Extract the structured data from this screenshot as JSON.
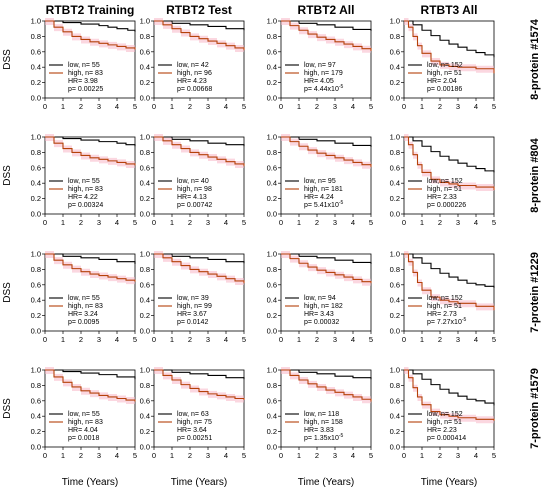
{
  "colors": {
    "low": "#000000",
    "high": "#b5410a",
    "ci": "#f7b7c7",
    "axis": "#000000"
  },
  "figure": {
    "column_titles": [
      "RTBT2 Training",
      "RTBT2 Test",
      "RTBT2 All",
      "RTBT3 All"
    ],
    "row_labels": [
      "8-protein #1574",
      "8-protein #804",
      "7-protein #1229",
      "7-protein #1579"
    ],
    "y_axis_title": "DSS",
    "x_axis_title": "Time (Years)",
    "x_ticks": [
      "0",
      "1",
      "2",
      "3",
      "4",
      "5"
    ],
    "y_ticks": [
      "0.0",
      "0.2",
      "0.4",
      "0.6",
      "0.8",
      "1.0"
    ],
    "legend_labels": {
      "low": "low",
      "high": "high",
      "hr": "HR=",
      "p": "p="
    }
  },
  "chart_data": [
    {
      "type": "line",
      "row": 0,
      "col": 0,
      "ylim": [
        0,
        1
      ],
      "xlim": [
        0,
        5
      ],
      "n_low": "55",
      "n_high": "83",
      "hr": "3.98",
      "p_mant": "0.00225",
      "p_exp": "",
      "series": [
        {
          "name": "low",
          "x": [
            0,
            1,
            2,
            3,
            3.5,
            4,
            4.6,
            5
          ],
          "y": [
            1.0,
            0.98,
            0.96,
            0.94,
            0.92,
            0.9,
            0.88,
            0.86
          ]
        },
        {
          "name": "high",
          "x": [
            0,
            0.5,
            1,
            1.5,
            2,
            2.5,
            3,
            3.5,
            4,
            4.5,
            5
          ],
          "y": [
            1.0,
            0.92,
            0.86,
            0.8,
            0.76,
            0.73,
            0.71,
            0.69,
            0.67,
            0.65,
            0.63
          ]
        }
      ]
    },
    {
      "type": "line",
      "row": 0,
      "col": 1,
      "ylim": [
        0,
        1
      ],
      "xlim": [
        0,
        5
      ],
      "n_low": "42",
      "n_high": "96",
      "hr": "4.23",
      "p_mant": "0.00668",
      "p_exp": "",
      "series": [
        {
          "name": "low",
          "x": [
            0,
            1,
            2,
            3,
            4,
            5
          ],
          "y": [
            1.0,
            0.97,
            0.95,
            0.93,
            0.9,
            0.88
          ]
        },
        {
          "name": "high",
          "x": [
            0,
            0.5,
            1,
            1.5,
            2,
            2.5,
            3,
            3.5,
            4,
            4.5,
            5
          ],
          "y": [
            1.0,
            0.95,
            0.9,
            0.85,
            0.8,
            0.77,
            0.74,
            0.71,
            0.68,
            0.65,
            0.62
          ]
        }
      ]
    },
    {
      "type": "line",
      "row": 0,
      "col": 2,
      "ylim": [
        0,
        1
      ],
      "xlim": [
        0,
        5
      ],
      "n_low": "97",
      "n_high": "179",
      "hr": "4.05",
      "p_mant": "4.44x10",
      "p_exp": "-5",
      "series": [
        {
          "name": "low",
          "x": [
            0,
            1,
            2,
            3,
            4,
            5
          ],
          "y": [
            1.0,
            0.97,
            0.95,
            0.92,
            0.89,
            0.87
          ]
        },
        {
          "name": "high",
          "x": [
            0,
            0.5,
            1,
            1.5,
            2,
            2.5,
            3,
            3.5,
            4,
            4.5,
            5
          ],
          "y": [
            1.0,
            0.94,
            0.88,
            0.83,
            0.79,
            0.76,
            0.73,
            0.7,
            0.67,
            0.64,
            0.61
          ]
        }
      ]
    },
    {
      "type": "line",
      "row": 0,
      "col": 3,
      "ylim": [
        0,
        1
      ],
      "xlim": [
        0,
        5
      ],
      "n_low": "152",
      "n_high": "51",
      "hr": "2.04",
      "p_mant": "0.00186",
      "p_exp": "",
      "series": [
        {
          "name": "low",
          "x": [
            0,
            0.5,
            1,
            1.5,
            2,
            2.5,
            3,
            3.5,
            4,
            4.5,
            5
          ],
          "y": [
            1.0,
            0.95,
            0.88,
            0.81,
            0.75,
            0.7,
            0.66,
            0.62,
            0.59,
            0.56,
            0.53
          ]
        },
        {
          "name": "high",
          "x": [
            0,
            0.25,
            0.5,
            0.75,
            1,
            1.5,
            2,
            2.5,
            3,
            4,
            5
          ],
          "y": [
            1.0,
            0.92,
            0.8,
            0.68,
            0.58,
            0.48,
            0.43,
            0.41,
            0.4,
            0.38,
            0.32
          ]
        }
      ]
    },
    {
      "type": "line",
      "row": 1,
      "col": 0,
      "ylim": [
        0,
        1
      ],
      "xlim": [
        0,
        5
      ],
      "n_low": "55",
      "n_high": "83",
      "hr": "4.22",
      "p_mant": "0.00324",
      "p_exp": "",
      "series": [
        {
          "name": "low",
          "x": [
            0,
            1,
            2,
            3,
            4,
            4.5,
            5
          ],
          "y": [
            1.0,
            0.98,
            0.96,
            0.94,
            0.92,
            0.9,
            0.88
          ]
        },
        {
          "name": "high",
          "x": [
            0,
            0.5,
            1,
            1.5,
            2,
            2.5,
            3,
            3.5,
            4,
            4.5,
            5
          ],
          "y": [
            1.0,
            0.92,
            0.85,
            0.8,
            0.76,
            0.73,
            0.71,
            0.69,
            0.67,
            0.65,
            0.63
          ]
        }
      ]
    },
    {
      "type": "line",
      "row": 1,
      "col": 1,
      "ylim": [
        0,
        1
      ],
      "xlim": [
        0,
        5
      ],
      "n_low": "40",
      "n_high": "98",
      "hr": "4.13",
      "p_mant": "0.00742",
      "p_exp": "",
      "series": [
        {
          "name": "low",
          "x": [
            0,
            1,
            2,
            3,
            4,
            5
          ],
          "y": [
            1.0,
            0.97,
            0.95,
            0.92,
            0.9,
            0.88
          ]
        },
        {
          "name": "high",
          "x": [
            0,
            0.5,
            1,
            1.5,
            2,
            2.5,
            3,
            3.5,
            4,
            4.5,
            5
          ],
          "y": [
            1.0,
            0.95,
            0.9,
            0.85,
            0.8,
            0.77,
            0.74,
            0.71,
            0.68,
            0.65,
            0.62
          ]
        }
      ]
    },
    {
      "type": "line",
      "row": 1,
      "col": 2,
      "ylim": [
        0,
        1
      ],
      "xlim": [
        0,
        5
      ],
      "n_low": "95",
      "n_high": "181",
      "hr": "4.24",
      "p_mant": "5.41x10",
      "p_exp": "-5",
      "series": [
        {
          "name": "low",
          "x": [
            0,
            1,
            2,
            3,
            4,
            5
          ],
          "y": [
            1.0,
            0.97,
            0.95,
            0.92,
            0.89,
            0.87
          ]
        },
        {
          "name": "high",
          "x": [
            0,
            0.5,
            1,
            1.5,
            2,
            2.5,
            3,
            3.5,
            4,
            4.5,
            5
          ],
          "y": [
            1.0,
            0.94,
            0.88,
            0.83,
            0.79,
            0.76,
            0.73,
            0.7,
            0.67,
            0.64,
            0.61
          ]
        }
      ]
    },
    {
      "type": "line",
      "row": 1,
      "col": 3,
      "ylim": [
        0,
        1
      ],
      "xlim": [
        0,
        5
      ],
      "n_low": "152",
      "n_high": "51",
      "hr": "2.33",
      "p_mant": "0.000226",
      "p_exp": "",
      "series": [
        {
          "name": "low",
          "x": [
            0,
            0.5,
            1,
            1.5,
            2,
            2.5,
            3,
            3.5,
            4,
            4.5,
            5
          ],
          "y": [
            1.0,
            0.95,
            0.88,
            0.81,
            0.75,
            0.7,
            0.66,
            0.62,
            0.59,
            0.56,
            0.54
          ]
        },
        {
          "name": "high",
          "x": [
            0,
            0.25,
            0.5,
            0.75,
            1,
            1.5,
            2,
            2.5,
            3,
            4,
            5
          ],
          "y": [
            1.0,
            0.9,
            0.77,
            0.64,
            0.54,
            0.45,
            0.41,
            0.39,
            0.37,
            0.35,
            0.31
          ]
        }
      ]
    },
    {
      "type": "line",
      "row": 2,
      "col": 0,
      "ylim": [
        0,
        1
      ],
      "xlim": [
        0,
        5
      ],
      "n_low": "55",
      "n_high": "83",
      "hr": "3.24",
      "p_mant": "0.0095",
      "p_exp": "",
      "series": [
        {
          "name": "low",
          "x": [
            0,
            1,
            2,
            3,
            4,
            5
          ],
          "y": [
            1.0,
            0.97,
            0.95,
            0.93,
            0.9,
            0.87
          ]
        },
        {
          "name": "high",
          "x": [
            0,
            0.5,
            1,
            1.5,
            2,
            2.5,
            3,
            3.5,
            4,
            4.5,
            5
          ],
          "y": [
            1.0,
            0.92,
            0.86,
            0.81,
            0.77,
            0.74,
            0.72,
            0.7,
            0.68,
            0.66,
            0.64
          ]
        }
      ]
    },
    {
      "type": "line",
      "row": 2,
      "col": 1,
      "ylim": [
        0,
        1
      ],
      "xlim": [
        0,
        5
      ],
      "n_low": "39",
      "n_high": "99",
      "hr": "3.67",
      "p_mant": "0.0142",
      "p_exp": "",
      "series": [
        {
          "name": "low",
          "x": [
            0,
            1,
            2,
            3,
            4,
            5
          ],
          "y": [
            1.0,
            0.97,
            0.95,
            0.93,
            0.9,
            0.88
          ]
        },
        {
          "name": "high",
          "x": [
            0,
            0.5,
            1,
            1.5,
            2,
            2.5,
            3,
            3.5,
            4,
            4.5,
            5
          ],
          "y": [
            1.0,
            0.95,
            0.9,
            0.85,
            0.8,
            0.77,
            0.74,
            0.71,
            0.68,
            0.65,
            0.62
          ]
        }
      ]
    },
    {
      "type": "line",
      "row": 2,
      "col": 2,
      "ylim": [
        0,
        1
      ],
      "xlim": [
        0,
        5
      ],
      "n_low": "94",
      "n_high": "182",
      "hr": "3.43",
      "p_mant": "0.00032",
      "p_exp": "",
      "series": [
        {
          "name": "low",
          "x": [
            0,
            1,
            2,
            3,
            4,
            5
          ],
          "y": [
            1.0,
            0.97,
            0.95,
            0.92,
            0.89,
            0.87
          ]
        },
        {
          "name": "high",
          "x": [
            0,
            0.5,
            1,
            1.5,
            2,
            2.5,
            3,
            3.5,
            4,
            4.5,
            5
          ],
          "y": [
            1.0,
            0.94,
            0.88,
            0.83,
            0.79,
            0.76,
            0.73,
            0.7,
            0.67,
            0.64,
            0.62
          ]
        }
      ]
    },
    {
      "type": "line",
      "row": 2,
      "col": 3,
      "ylim": [
        0,
        1
      ],
      "xlim": [
        0,
        5
      ],
      "n_low": "152",
      "n_high": "51",
      "hr": "2.73",
      "p_mant": "7.27x10",
      "p_exp": "-5",
      "series": [
        {
          "name": "low",
          "x": [
            0,
            0.5,
            1,
            1.5,
            2,
            2.5,
            3,
            3.5,
            4,
            4.5,
            5
          ],
          "y": [
            1.0,
            0.95,
            0.88,
            0.81,
            0.75,
            0.7,
            0.66,
            0.62,
            0.6,
            0.58,
            0.56
          ]
        },
        {
          "name": "high",
          "x": [
            0,
            0.25,
            0.5,
            0.75,
            1,
            1.5,
            2,
            2.5,
            3,
            4,
            5
          ],
          "y": [
            1.0,
            0.9,
            0.76,
            0.63,
            0.53,
            0.44,
            0.4,
            0.38,
            0.36,
            0.32,
            0.27
          ]
        }
      ]
    },
    {
      "type": "line",
      "row": 3,
      "col": 0,
      "ylim": [
        0,
        1
      ],
      "xlim": [
        0,
        5
      ],
      "n_low": "55",
      "n_high": "83",
      "hr": "4.04",
      "p_mant": "0.0018",
      "p_exp": "",
      "series": [
        {
          "name": "low",
          "x": [
            0,
            1,
            2,
            3,
            4,
            5
          ],
          "y": [
            1.0,
            0.98,
            0.96,
            0.94,
            0.91,
            0.88
          ]
        },
        {
          "name": "high",
          "x": [
            0,
            0.5,
            1,
            1.5,
            2,
            2.5,
            3,
            3.5,
            4,
            4.5,
            5
          ],
          "y": [
            1.0,
            0.91,
            0.84,
            0.78,
            0.73,
            0.7,
            0.67,
            0.65,
            0.63,
            0.61,
            0.59
          ]
        }
      ]
    },
    {
      "type": "line",
      "row": 3,
      "col": 1,
      "ylim": [
        0,
        1
      ],
      "xlim": [
        0,
        5
      ],
      "n_low": "63",
      "n_high": "75",
      "hr": "3.64",
      "p_mant": "0.00251",
      "p_exp": "",
      "series": [
        {
          "name": "low",
          "x": [
            0,
            1,
            2,
            3,
            4,
            5
          ],
          "y": [
            1.0,
            0.97,
            0.95,
            0.93,
            0.9,
            0.88
          ]
        },
        {
          "name": "high",
          "x": [
            0,
            0.5,
            1,
            1.5,
            2,
            2.5,
            3,
            3.5,
            4,
            4.5,
            5
          ],
          "y": [
            1.0,
            0.93,
            0.87,
            0.81,
            0.76,
            0.72,
            0.69,
            0.67,
            0.65,
            0.63,
            0.61
          ]
        }
      ]
    },
    {
      "type": "line",
      "row": 3,
      "col": 2,
      "ylim": [
        0,
        1
      ],
      "xlim": [
        0,
        5
      ],
      "n_low": "118",
      "n_high": "158",
      "hr": "3.83",
      "p_mant": "1.35x10",
      "p_exp": "-5",
      "series": [
        {
          "name": "low",
          "x": [
            0,
            1,
            2,
            3,
            4,
            5
          ],
          "y": [
            1.0,
            0.97,
            0.95,
            0.92,
            0.9,
            0.88
          ]
        },
        {
          "name": "high",
          "x": [
            0,
            0.5,
            1,
            1.5,
            2,
            2.5,
            3,
            3.5,
            4,
            4.5,
            5
          ],
          "y": [
            1.0,
            0.93,
            0.87,
            0.82,
            0.78,
            0.74,
            0.71,
            0.68,
            0.65,
            0.62,
            0.59
          ]
        }
      ]
    },
    {
      "type": "line",
      "row": 3,
      "col": 3,
      "ylim": [
        0,
        1
      ],
      "xlim": [
        0,
        5
      ],
      "n_low": "152",
      "n_high": "51",
      "hr": "2.23",
      "p_mant": "0.000414",
      "p_exp": "",
      "series": [
        {
          "name": "low",
          "x": [
            0,
            0.5,
            1,
            1.5,
            2,
            2.5,
            3,
            3.5,
            4,
            4.5,
            5
          ],
          "y": [
            1.0,
            0.95,
            0.88,
            0.81,
            0.75,
            0.7,
            0.66,
            0.62,
            0.6,
            0.57,
            0.54
          ]
        },
        {
          "name": "high",
          "x": [
            0,
            0.25,
            0.5,
            0.75,
            1,
            1.5,
            2,
            2.5,
            3,
            4,
            5
          ],
          "y": [
            1.0,
            0.9,
            0.77,
            0.65,
            0.55,
            0.46,
            0.42,
            0.4,
            0.38,
            0.36,
            0.34
          ]
        }
      ]
    }
  ]
}
